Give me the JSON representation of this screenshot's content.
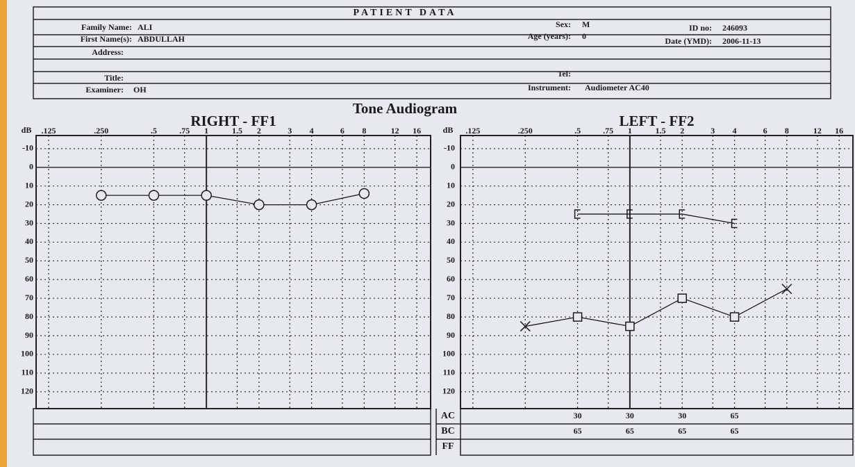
{
  "form": {
    "title": "PATIENT DATA",
    "fields": [
      {
        "label": "Family Name:",
        "value": "ALI"
      },
      {
        "label": "First Name(s):",
        "value": "ABDULLAH"
      },
      {
        "label": "Address:"
      },
      {
        "label": "Title:"
      },
      {
        "label": "Examiner:",
        "value": "OH"
      },
      {
        "label": "Sex:",
        "value": "M"
      },
      {
        "label": "Age (years):",
        "value": "0"
      },
      {
        "label": "ID no:",
        "value": "246093"
      },
      {
        "label": "Date (YMD):",
        "value": "2006-11-13"
      },
      {
        "label": "Tel:"
      },
      {
        "label": "Instrument:",
        "value": "Audiometer AC40"
      }
    ],
    "heading": "Tone Audiogram"
  },
  "chart_data": [
    {
      "type": "line",
      "title": "RIGHT - FF1",
      "y_label": "dB",
      "log_x": true,
      "y_reversed": true,
      "grid": "dotted",
      "reference_x": 1,
      "reference_y": 0,
      "xlim": [
        0.106,
        19.2
      ],
      "ylim": [
        -17,
        129
      ],
      "xticks": [
        {
          "value": 0.125,
          "label": ".125"
        },
        {
          "value": 0.25,
          "label": ".250"
        },
        {
          "value": 0.5,
          "label": ".5"
        },
        {
          "value": 0.75,
          "label": ".75"
        },
        1,
        1.5,
        2,
        3,
        4,
        6,
        8,
        12,
        16
      ],
      "yticks": [
        -10,
        0,
        10,
        20,
        30,
        40,
        50,
        60,
        70,
        80,
        90,
        100,
        110,
        120
      ],
      "series": [
        {
          "color": "#1a1a1a",
          "marker": "circle",
          "x": [
            0.25,
            0.5,
            1,
            2,
            4,
            8
          ],
          "values": [
            15,
            15,
            15,
            20,
            20,
            14
          ]
        }
      ]
    },
    {
      "type": "line",
      "title": "LEFT - FF2",
      "y_label": "dB",
      "log_x": true,
      "y_reversed": true,
      "grid": "dotted",
      "reference_x": 1,
      "reference_y": 0,
      "xlim": [
        0.106,
        19.2
      ],
      "ylim": [
        -17,
        129
      ],
      "xticks": [
        {
          "value": 0.125,
          "label": ".125"
        },
        {
          "value": 0.25,
          "label": ".250"
        },
        {
          "value": 0.5,
          "label": ".5"
        },
        {
          "value": 0.75,
          "label": ".75"
        },
        1,
        1.5,
        2,
        3,
        4,
        6,
        8,
        12,
        16
      ],
      "yticks": [
        -10,
        0,
        10,
        20,
        30,
        40,
        50,
        60,
        70,
        80,
        90,
        100,
        110,
        120
      ],
      "series": [
        {
          "color": "#1a1a1a",
          "marker": "bracket",
          "x": [
            0.5,
            1,
            2,
            4
          ],
          "values": [
            25,
            25,
            25,
            30
          ]
        },
        {
          "color": "#1a1a1a",
          "markers": [
            "x",
            "square",
            "square",
            "square",
            "square",
            "x"
          ],
          "x": [
            0.25,
            0.5,
            1,
            2,
            4,
            8
          ],
          "values": [
            85,
            80,
            85,
            70,
            80,
            65
          ]
        }
      ],
      "table": {
        "x": [
          0.5,
          1,
          2,
          4
        ],
        "rows": [
          {
            "label": "AC",
            "values": [
              30,
              30,
              30,
              65
            ]
          },
          {
            "label": "BC",
            "values": [
              65,
              65,
              65,
              65
            ]
          },
          {
            "label": "FF"
          }
        ]
      }
    }
  ]
}
